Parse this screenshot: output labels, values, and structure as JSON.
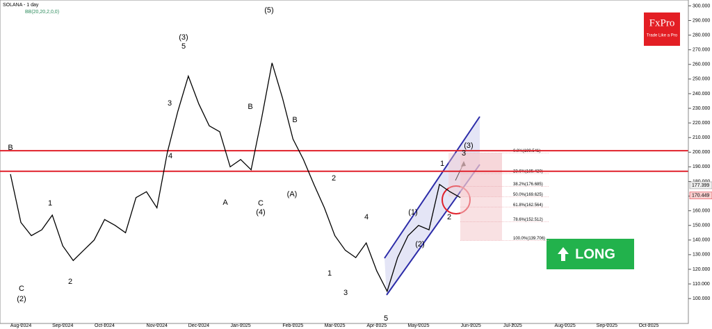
{
  "chart_data": {
    "type": "line",
    "title": "SOLANA - 1 day",
    "subtitle": "BB(20,20,2,0,0)",
    "brand": "FxPro",
    "tagline": "Trade Like a Pro",
    "signal": "LONG",
    "categories": [
      null,
      "Aug-2024",
      null,
      null,
      null,
      "Sep-2024",
      null,
      null,
      null,
      "Oct-2024",
      null,
      null,
      null,
      null,
      "Nov-2024",
      null,
      null,
      null,
      "Dec-2024",
      null,
      null,
      null,
      "Jan-2025",
      null,
      null,
      null,
      null,
      "Feb-2025",
      null,
      null,
      null,
      "Mar-2025",
      null,
      null,
      null,
      "Apr-2025",
      null,
      null,
      null,
      "May-2025",
      null,
      null,
      null,
      null,
      "Jun-2025",
      null,
      null,
      null,
      "Jul-2025",
      null,
      null,
      null,
      null,
      "Aug-2025",
      null,
      null,
      null,
      "Sep-2025",
      null,
      null,
      null,
      "Oct-2025",
      null,
      null,
      null
    ],
    "series": [
      {
        "name": "SOLANA",
        "color": "#000000",
        "values": [
          185,
          152,
          143,
          147,
          157,
          136,
          126,
          133,
          140,
          154,
          150,
          145,
          169,
          173,
          162,
          200,
          228,
          252,
          233,
          218,
          214,
          190,
          195,
          188,
          223,
          261,
          237,
          209,
          195,
          178,
          162,
          143,
          133,
          128,
          138,
          119,
          105,
          128,
          143,
          150,
          147,
          178,
          173,
          169,
          null,
          null,
          null,
          null,
          null,
          null,
          null,
          null,
          null,
          null,
          null,
          null,
          null,
          null,
          null,
          null,
          null,
          null,
          null,
          null,
          null
        ]
      }
    ],
    "ylim": [
      83,
      304
    ],
    "yticks": [
      {
        "value": 100,
        "label": "100.000"
      },
      {
        "value": 110,
        "label": "110.000"
      },
      {
        "value": 120,
        "label": "120.000"
      },
      {
        "value": 130,
        "label": "130.000"
      },
      {
        "value": 140,
        "label": "140.000"
      },
      {
        "value": 150,
        "label": "150.000"
      },
      {
        "value": 160,
        "label": "160.000"
      },
      {
        "value": 170,
        "label": "170.000"
      },
      {
        "value": 180,
        "label": "180.000"
      },
      {
        "value": 190,
        "label": "190.000"
      },
      {
        "value": 200,
        "label": "200.000"
      },
      {
        "value": 210,
        "label": "210.000"
      },
      {
        "value": 220,
        "label": "220.000"
      },
      {
        "value": 230,
        "label": "230.000"
      },
      {
        "value": 240,
        "label": "240.000"
      },
      {
        "value": 250,
        "label": "250.000"
      },
      {
        "value": 260,
        "label": "260.000"
      },
      {
        "value": 270,
        "label": "270.000"
      },
      {
        "value": 280,
        "label": "280.000"
      },
      {
        "value": 290,
        "label": "290.000"
      },
      {
        "value": 300,
        "label": "300.000"
      }
    ],
    "price_markers": [
      {
        "value": 177.399,
        "label": "177.399"
      },
      {
        "value": 170.449,
        "label": "170.449"
      }
    ],
    "resistance_levels": [
      201,
      187
    ],
    "fib_levels": [
      {
        "value": 199.541,
        "label": "0.0%(199.541)"
      },
      {
        "value": 185.42,
        "label": "23.6%(185.420)"
      },
      {
        "value": 176.685,
        "label": "38.2%(176.685)"
      },
      {
        "value": 169.625,
        "label": "50.0%(169.625)"
      },
      {
        "value": 162.564,
        "label": "61.8%(162.564)"
      },
      {
        "value": 152.512,
        "label": "78.6%(152.512)"
      },
      {
        "value": 139.706,
        "label": "100.0%(139.706)"
      }
    ],
    "annotations": [
      "B",
      "C",
      "(2)",
      "1",
      "2",
      "(3)",
      "5",
      "3",
      "4",
      "A",
      "(4)",
      "C",
      "B",
      "(5)",
      "(A)",
      "B",
      "2",
      "1",
      "4",
      "3",
      "5",
      "(1)",
      "(2)",
      "1",
      "2",
      "(3)",
      "3"
    ]
  }
}
